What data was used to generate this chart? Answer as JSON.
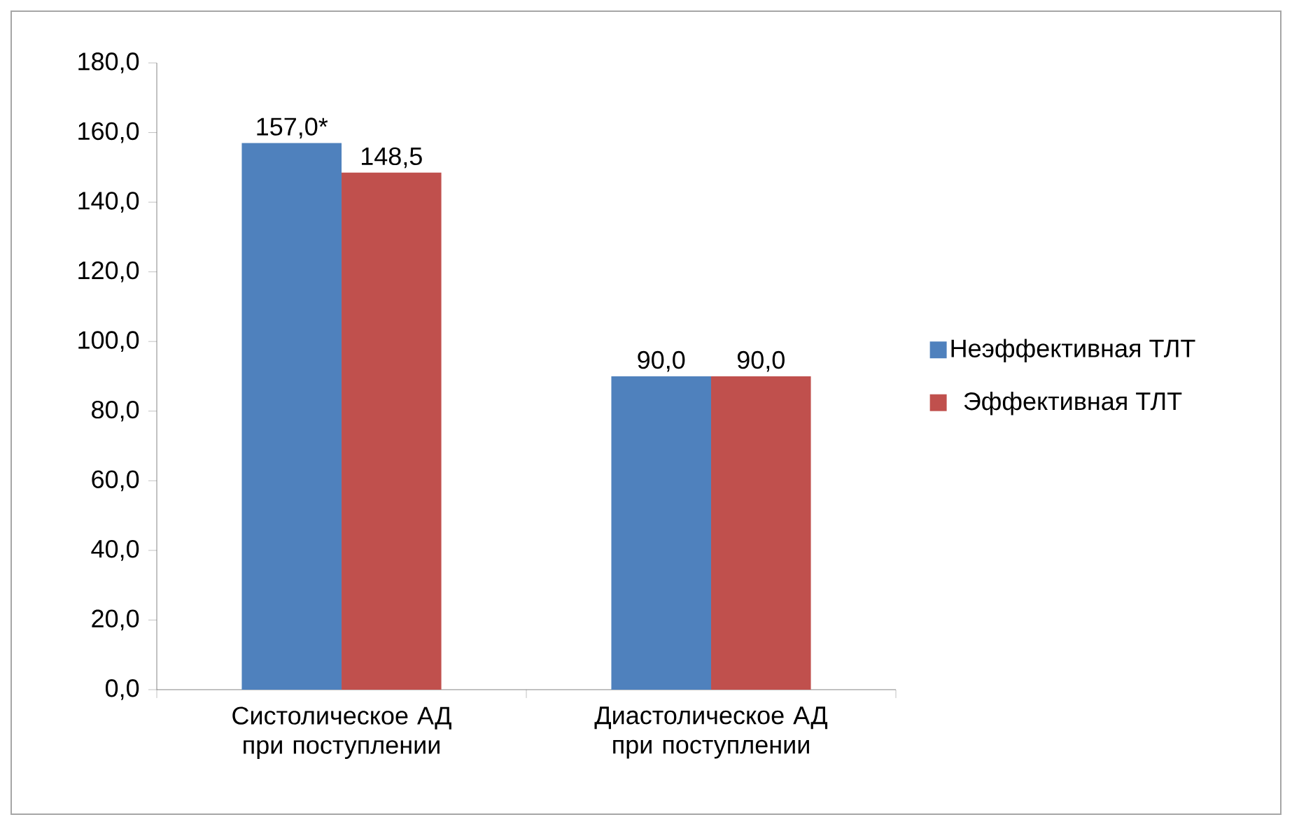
{
  "chart_data": {
    "type": "bar",
    "categories": [
      "Систолическое АД при поступлении",
      "Диастолическое АД при поступлении"
    ],
    "series": [
      {
        "name": "Неэффективная ТЛТ",
        "color": "#4f81bd",
        "values": [
          157.0,
          90.0
        ],
        "value_labels": [
          "157,0*",
          "90,0"
        ]
      },
      {
        "name": "Эффективная ТЛТ",
        "color": "#c0504d",
        "values": [
          148.5,
          90.0
        ],
        "value_labels": [
          "148,5",
          "90,0"
        ]
      }
    ],
    "ylim": [
      0,
      180
    ],
    "yticks": [
      {
        "value": 0,
        "label": "0,0"
      },
      {
        "value": 20,
        "label": "20,0"
      },
      {
        "value": 40,
        "label": "40,0"
      },
      {
        "value": 60,
        "label": "60,0"
      },
      {
        "value": 80,
        "label": "80,0"
      },
      {
        "value": 100,
        "label": "100,0"
      },
      {
        "value": 120,
        "label": "120,0"
      },
      {
        "value": 140,
        "label": "140,0"
      },
      {
        "value": 160,
        "label": "160,0"
      },
      {
        "value": 180,
        "label": "180,0"
      }
    ],
    "grid": false,
    "legend": "right"
  }
}
